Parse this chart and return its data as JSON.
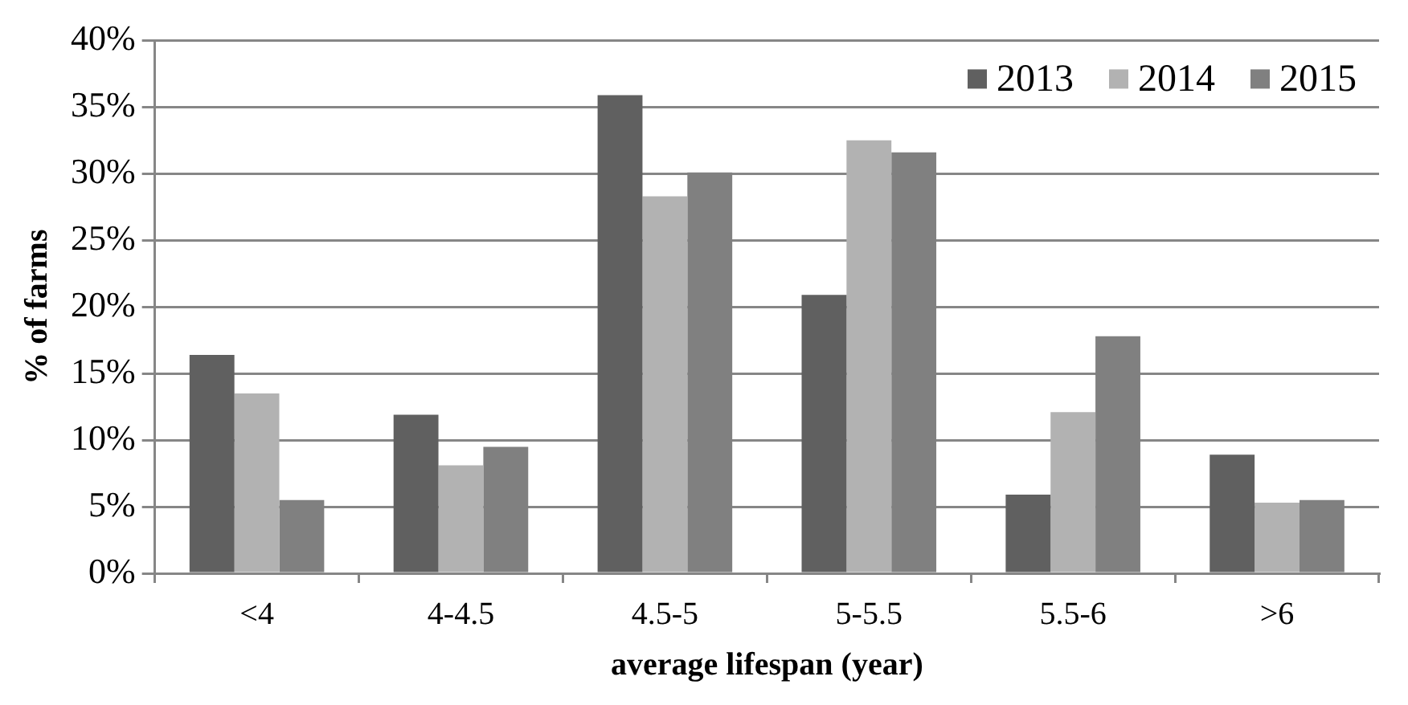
{
  "chart_data": {
    "type": "bar",
    "xlabel": "average lifespan (year)",
    "ylabel": "% of farms",
    "categories": [
      "<4",
      "4-4.5",
      "4.5-5",
      "5-5.5",
      "5.5-6",
      ">6"
    ],
    "series": [
      {
        "name": "2013",
        "color": "#606060",
        "values": [
          16.4,
          11.9,
          35.9,
          20.9,
          5.9,
          8.9
        ]
      },
      {
        "name": "2014",
        "color": "#b2b2b2",
        "values": [
          13.5,
          8.1,
          28.3,
          32.5,
          12.1,
          5.3
        ]
      },
      {
        "name": "2015",
        "color": "#808080",
        "values": [
          5.5,
          9.5,
          30.1,
          31.6,
          17.8,
          5.5
        ]
      }
    ],
    "ylim": [
      0,
      40
    ],
    "yticks": [
      {
        "value": 0,
        "label": "0%"
      },
      {
        "value": 5,
        "label": "5%"
      },
      {
        "value": 10,
        "label": "10%"
      },
      {
        "value": 15,
        "label": "15%"
      },
      {
        "value": 20,
        "label": "20%"
      },
      {
        "value": 25,
        "label": "25%"
      },
      {
        "value": 30,
        "label": "30%"
      },
      {
        "value": 35,
        "label": "35%"
      },
      {
        "value": 40,
        "label": "40%"
      }
    ],
    "grid": "y",
    "legend": "top right"
  }
}
